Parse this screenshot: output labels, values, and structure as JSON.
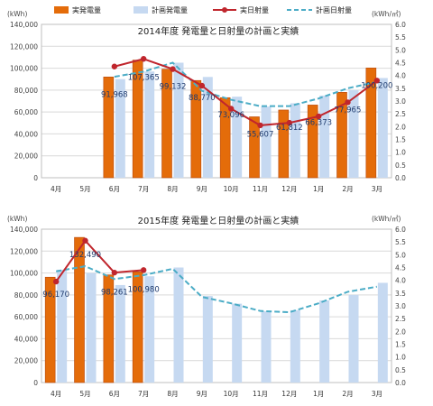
{
  "legend": {
    "actual_gen": "実発電量",
    "plan_gen": "計画発電量",
    "actual_irr": "実日射量",
    "plan_irr": "計画日射量"
  },
  "colors": {
    "actual_bar": "#E46C0A",
    "actual_bar_edge": "#B7470A",
    "plan_bar": "#C6D9F1",
    "actual_line": "#C0262D",
    "plan_line": "#4BACC6",
    "grid": "#D9D9D9",
    "frame": "#BFBFBF"
  },
  "chart_data": [
    {
      "type": "bar",
      "title": "2014年度 発電量と日射量の計画と実績",
      "y_unit": "(kWh)",
      "y2_unit": "(kWh/㎡)",
      "categories": [
        "4月",
        "5月",
        "6月",
        "7月",
        "8月",
        "9月",
        "10月",
        "11月",
        "12月",
        "1月",
        "2月",
        "3月"
      ],
      "ylim": [
        0,
        140000
      ],
      "y_ticks": [
        "0",
        "20,000",
        "40,000",
        "60,000",
        "80,000",
        "100,000",
        "120,000",
        "140,000"
      ],
      "y2lim": [
        0,
        6.0
      ],
      "y2_ticks": [
        "0.0",
        "0.5",
        "1.0",
        "1.5",
        "2.0",
        "2.5",
        "3.0",
        "3.5",
        "4.0",
        "4.5",
        "5.0",
        "5.5",
        "6.0"
      ],
      "series": [
        {
          "name": "実発電量",
          "type": "bar",
          "axis": "left",
          "values": [
            null,
            null,
            91968,
            107365,
            99132,
            88770,
            73096,
            55607,
            61812,
            66373,
            77965,
            100200
          ],
          "labels": [
            "",
            "",
            "91,968",
            "107,365",
            "99,132",
            "88,770",
            "73,096",
            "55,607",
            "61,812",
            "66,373",
            "77,965",
            "100,200"
          ]
        },
        {
          "name": "計画発電量",
          "type": "bar",
          "axis": "left",
          "values": [
            null,
            null,
            90000,
            97000,
            105000,
            92000,
            74000,
            65000,
            68000,
            75000,
            80000,
            91000
          ]
        },
        {
          "name": "実日射量",
          "type": "line",
          "axis": "right",
          "values": [
            null,
            null,
            4.35,
            4.65,
            4.25,
            3.6,
            2.7,
            2.05,
            2.15,
            2.4,
            2.95,
            3.8
          ]
        },
        {
          "name": "計画日射量",
          "type": "line",
          "axis": "right",
          "values": [
            null,
            null,
            3.95,
            4.15,
            4.5,
            3.4,
            3.05,
            2.8,
            2.8,
            3.1,
            3.5,
            3.75
          ]
        }
      ]
    },
    {
      "type": "bar",
      "title": "2015年度 発電量と日射量の計画と実績",
      "y_unit": "(kWh)",
      "y2_unit": "(kWh/㎡)",
      "categories": [
        "4月",
        "5月",
        "6月",
        "7月",
        "8月",
        "9月",
        "10月",
        "11月",
        "12月",
        "1月",
        "2月",
        "3月"
      ],
      "ylim": [
        0,
        140000
      ],
      "y_ticks": [
        "0",
        "20,000",
        "40,000",
        "60,000",
        "80,000",
        "100,000",
        "120,000",
        "140,000"
      ],
      "y2lim": [
        0,
        6.0
      ],
      "y2_ticks": [
        "0.0",
        "0.5",
        "1.0",
        "1.5",
        "2.0",
        "2.5",
        "3.0",
        "3.5",
        "4.0",
        "4.5",
        "5.0",
        "5.5",
        "6.0"
      ],
      "series": [
        {
          "name": "実発電量",
          "type": "bar",
          "axis": "left",
          "values": [
            96170,
            132490,
            98261,
            100980,
            null,
            null,
            null,
            null,
            null,
            null,
            null,
            null
          ],
          "labels": [
            "96,170",
            "132,490",
            "98,261",
            "100,980",
            "",
            "",
            "",
            "",
            "",
            "",
            "",
            ""
          ]
        },
        {
          "name": "計画発電量",
          "type": "bar",
          "axis": "left",
          "values": [
            103000,
            100000,
            89000,
            97000,
            105000,
            79000,
            72000,
            65000,
            66000,
            75000,
            80000,
            91000
          ]
        },
        {
          "name": "実日射量",
          "type": "line",
          "axis": "right",
          "values": [
            3.95,
            5.55,
            4.3,
            4.4,
            null,
            null,
            null,
            null,
            null,
            null,
            null,
            null
          ]
        },
        {
          "name": "計画日射量",
          "type": "line",
          "axis": "right",
          "values": [
            4.35,
            4.55,
            4.05,
            4.2,
            4.45,
            3.35,
            3.1,
            2.8,
            2.75,
            3.1,
            3.55,
            3.75
          ]
        }
      ]
    }
  ]
}
